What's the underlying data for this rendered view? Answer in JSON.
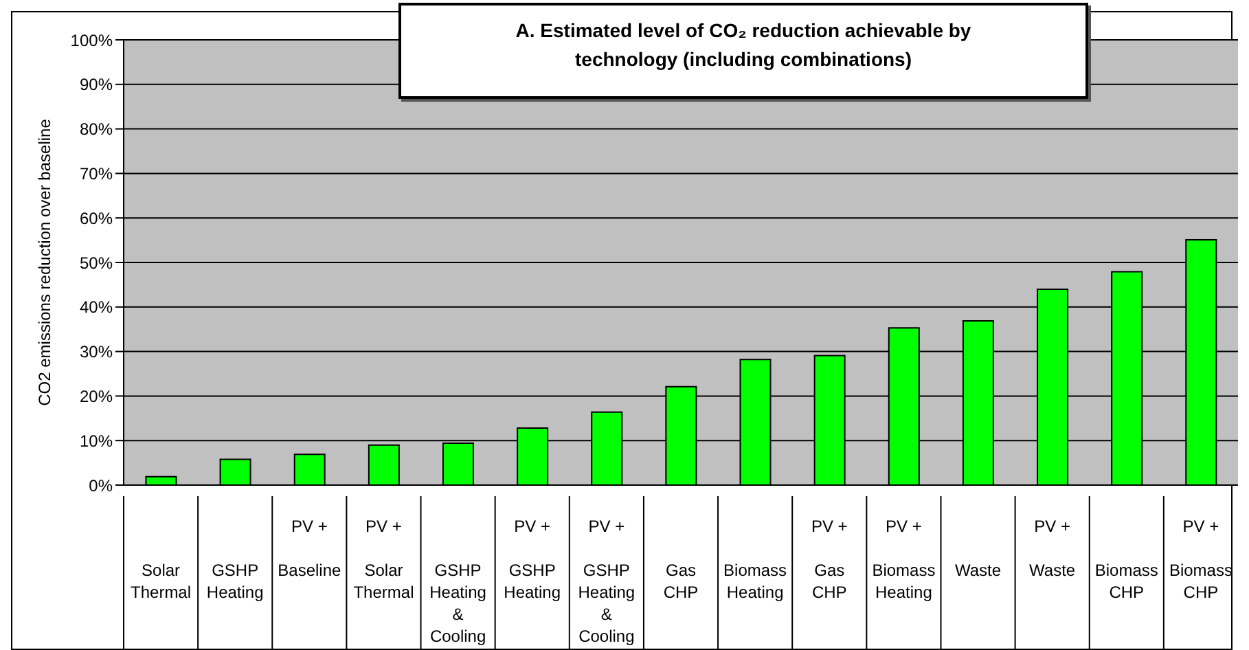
{
  "chart_data": {
    "type": "bar",
    "title": "A. Estimated level of CO₂ reduction achievable by technology (including combinations)",
    "ylabel": "CO2 emissions reduction over baseline",
    "categories": [
      "Solar Thermal",
      "GSHP Heating",
      "PV + Baseline",
      "PV + Solar Thermal",
      "GSHP Heating & Cooling",
      "PV + GSHP Heating",
      "PV + GSHP Heating & Cooling",
      "Gas CHP",
      "Biomass Heating",
      "PV + Gas CHP",
      "PV + Biomass Heating",
      "Waste",
      "PV + Waste",
      "Biomass CHP",
      "PV + Biomass CHP"
    ],
    "values": [
      1.9,
      5.8,
      6.9,
      9.0,
      9.4,
      12.8,
      16.4,
      22.1,
      28.2,
      29.1,
      35.3,
      36.9,
      44.0,
      47.9,
      55.1
    ],
    "color": "#00ff00",
    "ylim": [
      0,
      100
    ],
    "yticks": [
      {
        "value": 0,
        "label": "0%"
      },
      {
        "value": 10,
        "label": "10%"
      },
      {
        "value": 20,
        "label": "20%"
      },
      {
        "value": 30,
        "label": "30%"
      },
      {
        "value": 40,
        "label": "40%"
      },
      {
        "value": 50,
        "label": "50%"
      },
      {
        "value": 60,
        "label": "60%"
      },
      {
        "value": 70,
        "label": "70%"
      },
      {
        "value": 80,
        "label": "80%"
      },
      {
        "value": 90,
        "label": "90%"
      },
      {
        "value": 100,
        "label": "100%"
      }
    ],
    "grid": "y",
    "legend": false
  }
}
